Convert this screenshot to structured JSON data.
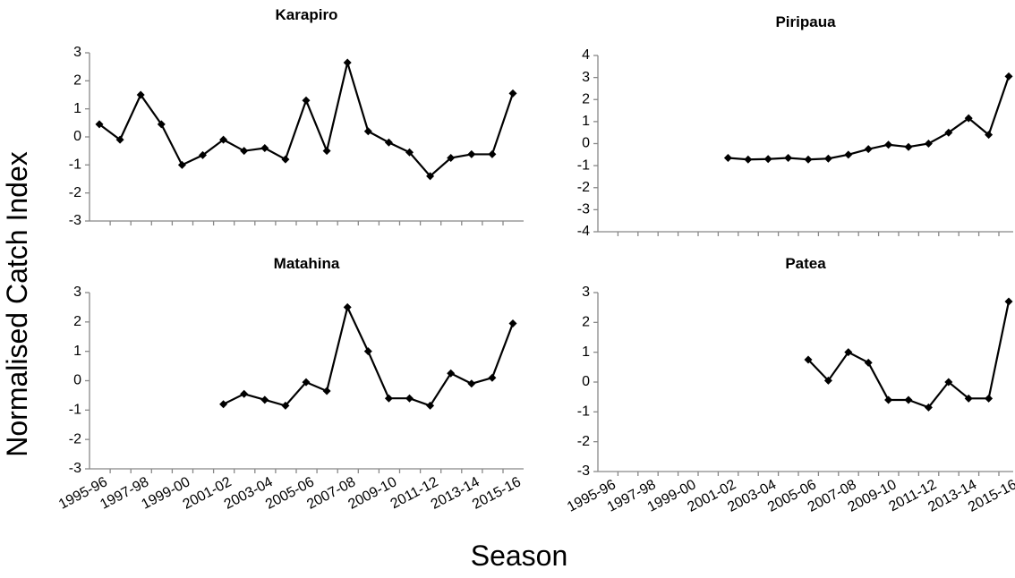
{
  "y_label": "Normalised Catch Index",
  "x_label": "Season",
  "chart_data": [
    {
      "type": "line",
      "title": "Karapiro",
      "color": "#000000",
      "values": [
        0.45,
        -0.1,
        1.5,
        0.45,
        -1.0,
        -0.65,
        -0.1,
        -0.5,
        -0.4,
        -0.8,
        1.3,
        -0.5,
        2.65,
        0.2,
        -0.2,
        -0.55,
        -1.4,
        -0.75,
        -0.62,
        -0.62,
        1.55
      ],
      "ylim": [
        -3,
        3
      ],
      "yticks": [
        -3,
        -2,
        -1,
        0,
        1,
        2,
        3
      ]
    },
    {
      "type": "line",
      "title": "Piripaua",
      "color": "#000000",
      "values": [
        null,
        null,
        null,
        null,
        null,
        null,
        -0.65,
        -0.72,
        -0.7,
        -0.65,
        -0.72,
        -0.68,
        -0.5,
        -0.25,
        -0.05,
        -0.15,
        0,
        0.5,
        1.15,
        0.4,
        3.05
      ],
      "ylim": [
        -4,
        4
      ],
      "yticks": [
        -4,
        -3,
        -2,
        -1,
        0,
        1,
        2,
        3,
        4
      ]
    },
    {
      "type": "line",
      "title": "Matahina",
      "color": "#000000",
      "categories": [
        "1995-96",
        null,
        "1997-98",
        null,
        "1999-00",
        null,
        "2001-02",
        null,
        "2003-04",
        null,
        "2005-06",
        null,
        "2007-08",
        null,
        "2009-10",
        null,
        "2011-12",
        null,
        "2013-14",
        null,
        "2015-16"
      ],
      "values": [
        null,
        null,
        null,
        null,
        null,
        null,
        -0.8,
        -0.45,
        -0.65,
        -0.85,
        -0.05,
        -0.35,
        2.5,
        1.0,
        -0.6,
        -0.6,
        -0.85,
        0.25,
        -0.1,
        0.1,
        1.95
      ],
      "ylim": [
        -3,
        3
      ],
      "yticks": [
        -3,
        -2,
        -1,
        0,
        1,
        2,
        3
      ]
    },
    {
      "type": "line",
      "title": "Patea",
      "color": "#000000",
      "categories": [
        "1995-96",
        null,
        "1997-98",
        null,
        "1999-00",
        null,
        "2001-02",
        null,
        "2003-04",
        null,
        "2005-06",
        null,
        "2007-08",
        null,
        "2009-10",
        null,
        "2011-12",
        null,
        "2013-14",
        null,
        "2015-16"
      ],
      "values": [
        null,
        null,
        null,
        null,
        null,
        null,
        null,
        null,
        null,
        null,
        0.75,
        0.05,
        1.0,
        0.65,
        -0.6,
        -0.6,
        -0.85,
        0,
        -0.55,
        -0.55,
        2.7
      ],
      "ylim": [
        -3,
        3
      ],
      "yticks": [
        -3,
        -2,
        -1,
        0,
        1,
        2,
        3
      ]
    }
  ]
}
